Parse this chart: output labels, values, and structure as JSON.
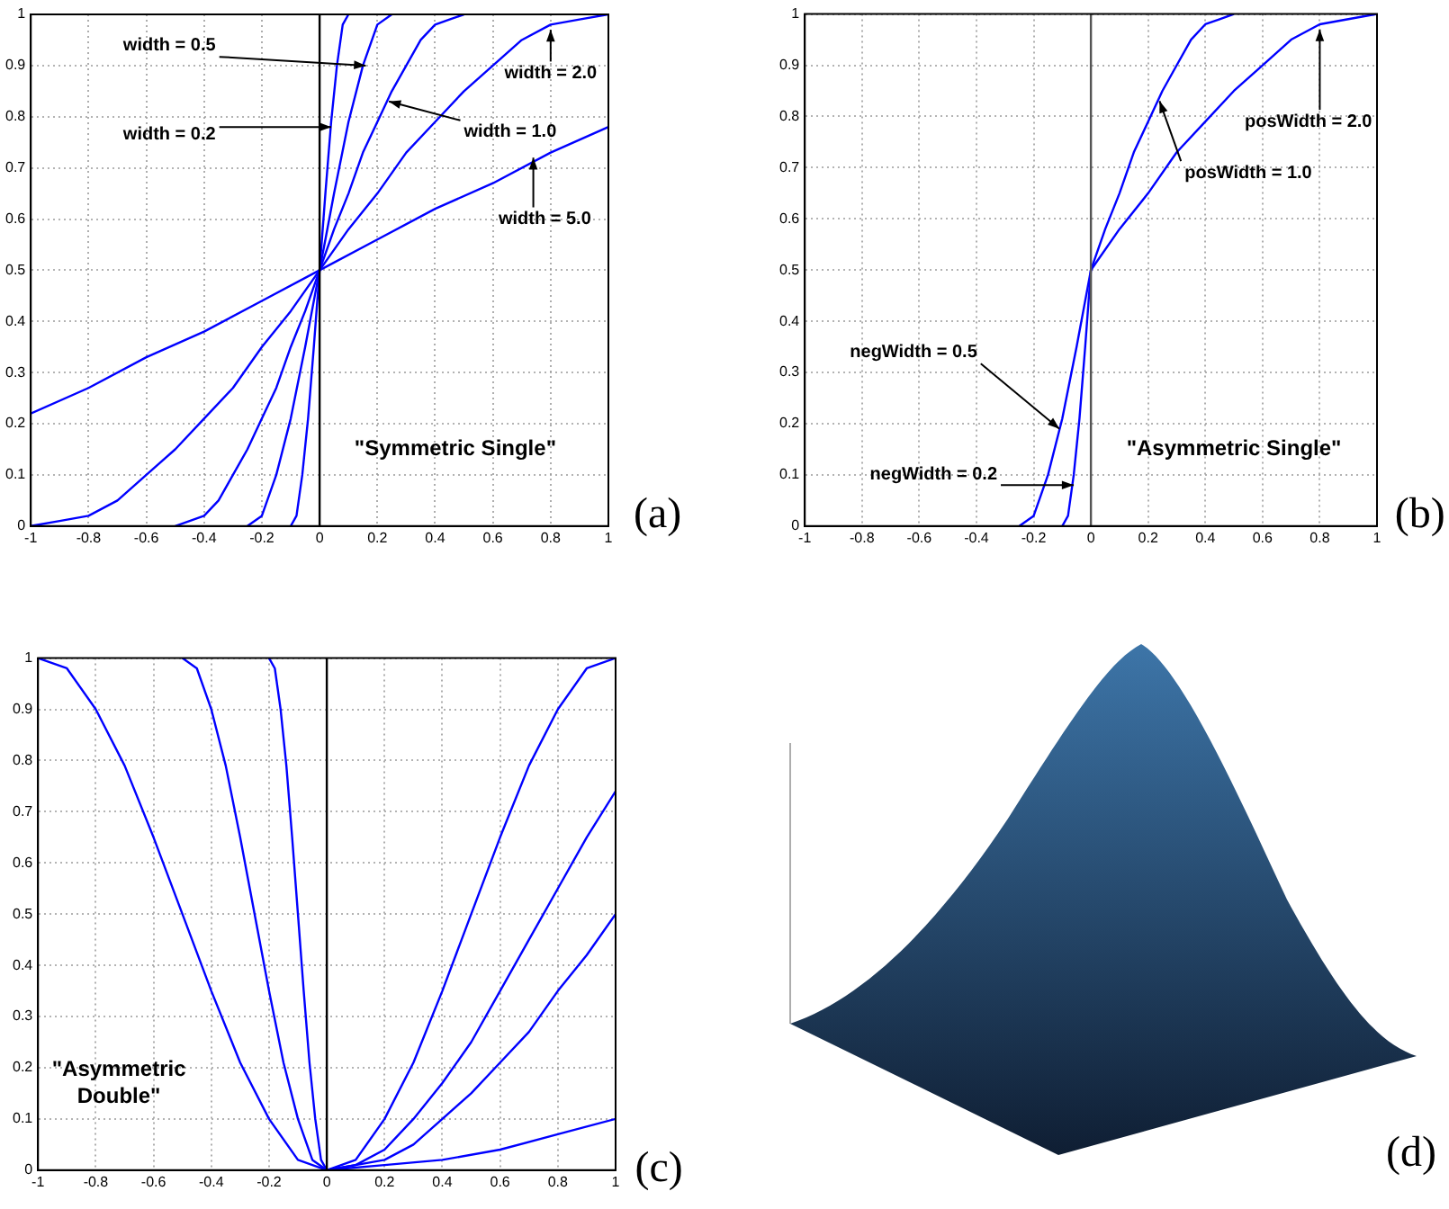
{
  "chart_data": [
    {
      "type": "line",
      "xlim": [
        -1,
        1
      ],
      "ylim": [
        0,
        1
      ],
      "xticks": [
        -1,
        -0.8,
        -0.6,
        -0.4,
        -0.2,
        0,
        0.2,
        0.4,
        0.6,
        0.8,
        1
      ],
      "yticks": [
        0,
        0.1,
        0.2,
        0.3,
        0.4,
        0.5,
        0.6,
        0.7,
        0.8,
        0.9,
        1
      ],
      "grid": true,
      "legend": false,
      "series": [
        {
          "color": "#0000ff",
          "x": [
            -1,
            -0.8,
            -0.6,
            -0.4,
            -0.2,
            0,
            0.2,
            0.4,
            0.6,
            0.8,
            1
          ],
          "values": [
            0.22,
            0.27,
            0.33,
            0.38,
            0.44,
            0.5,
            0.56,
            0.62,
            0.67,
            0.73,
            0.78
          ]
        },
        {
          "color": "#0000ff",
          "x": [
            -1,
            -0.9,
            -0.8,
            -0.7,
            -0.6,
            -0.5,
            -0.4,
            -0.3,
            -0.2,
            -0.1,
            0,
            0.1,
            0.2,
            0.3,
            0.4,
            0.5,
            0.6,
            0.7,
            0.8,
            0.9,
            1
          ],
          "values": [
            0,
            0.01,
            0.02,
            0.05,
            0.1,
            0.15,
            0.21,
            0.27,
            0.35,
            0.42,
            0.5,
            0.58,
            0.65,
            0.73,
            0.79,
            0.85,
            0.9,
            0.95,
            0.98,
            0.99,
            1
          ]
        },
        {
          "color": "#0000ff",
          "x": [
            -0.5,
            -0.45,
            -0.4,
            -0.35,
            -0.3,
            -0.25,
            -0.2,
            -0.15,
            -0.1,
            -0.05,
            0,
            0.05,
            0.1,
            0.15,
            0.2,
            0.25,
            0.3,
            0.35,
            0.4,
            0.45,
            0.5
          ],
          "values": [
            0,
            0.01,
            0.02,
            0.05,
            0.1,
            0.15,
            0.21,
            0.27,
            0.35,
            0.42,
            0.5,
            0.58,
            0.65,
            0.73,
            0.79,
            0.85,
            0.9,
            0.95,
            0.98,
            0.99,
            1
          ]
        },
        {
          "color": "#0000ff",
          "x": [
            -0.25,
            -0.2,
            -0.15,
            -0.1,
            -0.05,
            0,
            0.05,
            0.1,
            0.15,
            0.2,
            0.25
          ],
          "values": [
            0,
            0.02,
            0.1,
            0.21,
            0.35,
            0.5,
            0.65,
            0.79,
            0.9,
            0.98,
            1
          ]
        },
        {
          "color": "#0000ff",
          "x": [
            -0.1,
            -0.08,
            -0.06,
            -0.04,
            -0.02,
            0,
            0.02,
            0.04,
            0.06,
            0.08,
            0.1
          ],
          "values": [
            0,
            0.02,
            0.1,
            0.21,
            0.35,
            0.5,
            0.65,
            0.79,
            0.9,
            0.98,
            1
          ]
        }
      ],
      "ref_lines": [
        {
          "axis": "x",
          "value": 0,
          "color": "#000000"
        }
      ],
      "annotations": [
        {
          "text": "width = 0.5",
          "x": 0.16,
          "y": 0.9
        },
        {
          "text": "width = 0.2",
          "x": 0.04,
          "y": 0.78
        },
        {
          "text": "width = 1.0",
          "x": 0.24,
          "y": 0.83
        },
        {
          "text": "width = 2.0",
          "x": 0.8,
          "y": 0.97
        },
        {
          "text": "width = 5.0",
          "x": 0.74,
          "y": 0.72
        },
        "\"Symmetric Single\"",
        "(a)"
      ]
    },
    {
      "type": "line",
      "xlim": [
        -1,
        1
      ],
      "ylim": [
        0,
        1
      ],
      "xticks": [
        -1,
        -0.8,
        -0.6,
        -0.4,
        -0.2,
        0,
        0.2,
        0.4,
        0.6,
        0.8,
        1
      ],
      "yticks": [
        0,
        0.1,
        0.2,
        0.3,
        0.4,
        0.5,
        0.6,
        0.7,
        0.8,
        0.9,
        1
      ],
      "grid": true,
      "legend": false,
      "series": [
        {
          "color": "#0000ff",
          "x": [
            -0.1,
            -0.08,
            -0.06,
            -0.04,
            -0.02,
            0,
            0.05,
            0.1,
            0.15,
            0.2,
            0.25,
            0.3,
            0.35,
            0.4,
            0.45,
            0.5
          ],
          "values": [
            0,
            0.02,
            0.1,
            0.21,
            0.35,
            0.5,
            0.58,
            0.65,
            0.73,
            0.79,
            0.85,
            0.9,
            0.95,
            0.98,
            0.99,
            1
          ]
        },
        {
          "color": "#0000ff",
          "x": [
            -0.25,
            -0.2,
            -0.15,
            -0.1,
            -0.05,
            0,
            0.1,
            0.2,
            0.3,
            0.4,
            0.5,
            0.6,
            0.7,
            0.8,
            0.9,
            1
          ],
          "values": [
            0,
            0.02,
            0.1,
            0.21,
            0.35,
            0.5,
            0.58,
            0.65,
            0.73,
            0.79,
            0.85,
            0.9,
            0.95,
            0.98,
            0.99,
            1
          ]
        }
      ],
      "ref_lines": [
        {
          "axis": "x",
          "value": 0,
          "color": "#555555"
        }
      ],
      "annotations": [
        {
          "text": "posWidth = 2.0",
          "x": 0.8,
          "y": 0.97
        },
        {
          "text": "posWidth = 1.0",
          "x": 0.24,
          "y": 0.83
        },
        {
          "text": "negWidth = 0.5",
          "x": -0.11,
          "y": 0.19
        },
        {
          "text": "negWidth = 0.2",
          "x": -0.06,
          "y": 0.08
        },
        "\"Asymmetric Single\"",
        "(b)"
      ]
    },
    {
      "type": "line",
      "xlim": [
        -1,
        1
      ],
      "ylim": [
        0,
        1
      ],
      "xticks": [
        -1,
        -0.8,
        -0.6,
        -0.4,
        -0.2,
        0,
        0.2,
        0.4,
        0.6,
        0.8,
        1
      ],
      "yticks": [
        0,
        0.1,
        0.2,
        0.3,
        0.4,
        0.5,
        0.6,
        0.7,
        0.8,
        0.9,
        1
      ],
      "grid": true,
      "legend": false,
      "series": [
        {
          "color": "#0000ff",
          "x": [
            -1,
            -0.9,
            -0.8,
            -0.7,
            -0.6,
            -0.5,
            -0.4,
            -0.3,
            -0.2,
            -0.1,
            0,
            0.1,
            0.2,
            0.3,
            0.4,
            0.5,
            0.6,
            0.7,
            0.8,
            0.9,
            1
          ],
          "values": [
            1,
            0.98,
            0.9,
            0.79,
            0.65,
            0.5,
            0.35,
            0.21,
            0.1,
            0.02,
            0,
            0.02,
            0.1,
            0.21,
            0.35,
            0.5,
            0.65,
            0.79,
            0.9,
            0.98,
            1
          ]
        },
        {
          "color": "#0000ff",
          "x": [
            -0.5,
            -0.45,
            -0.4,
            -0.35,
            -0.3,
            -0.25,
            -0.2,
            -0.15,
            -0.1,
            -0.05,
            0,
            0.1,
            0.2,
            0.3,
            0.4,
            0.5,
            0.6,
            0.7,
            0.8,
            0.9,
            1
          ],
          "values": [
            1,
            0.98,
            0.9,
            0.79,
            0.65,
            0.5,
            0.35,
            0.21,
            0.1,
            0.02,
            0,
            0.01,
            0.04,
            0.1,
            0.17,
            0.25,
            0.35,
            0.45,
            0.55,
            0.65,
            0.74
          ]
        },
        {
          "color": "#0000ff",
          "x": [
            -0.2,
            -0.18,
            -0.16,
            -0.14,
            -0.12,
            -0.1,
            -0.08,
            -0.06,
            -0.04,
            -0.02,
            0,
            0.1,
            0.2,
            0.3,
            0.4,
            0.5,
            0.6,
            0.7,
            0.8,
            0.9,
            1
          ],
          "values": [
            1,
            0.98,
            0.9,
            0.79,
            0.65,
            0.5,
            0.35,
            0.21,
            0.1,
            0.02,
            0,
            0.01,
            0.02,
            0.05,
            0.1,
            0.15,
            0.21,
            0.27,
            0.35,
            0.42,
            0.5
          ]
        },
        {
          "color": "#0000ff",
          "x": [
            0,
            0.2,
            0.4,
            0.6,
            0.8,
            1
          ],
          "values": [
            0,
            0.01,
            0.02,
            0.04,
            0.07,
            0.1
          ]
        }
      ],
      "ref_lines": [
        {
          "axis": "x",
          "value": 0,
          "color": "#000000"
        }
      ],
      "annotations": [
        "\"Asymmetric Double\"",
        "(c)"
      ]
    },
    {
      "type": "other",
      "annotations": [
        "(d)"
      ]
    }
  ]
}
